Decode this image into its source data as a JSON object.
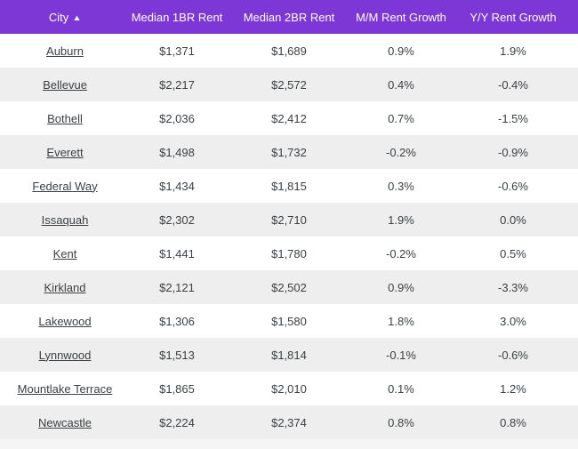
{
  "colors": {
    "header_bg": "#7d37d7",
    "header_text": "#ffffff",
    "row_white": "#ffffff",
    "row_alt": "#eeeeee",
    "cell_text": "#3c4043",
    "page_bg": "#f5f5f5"
  },
  "icons": {
    "sort_ascending": "▲"
  },
  "table": {
    "columns": [
      {
        "key": "city",
        "label": "City",
        "sorted": "ascending"
      },
      {
        "key": "median_1br",
        "label": "Median 1BR Rent",
        "sorted": "none"
      },
      {
        "key": "median_2br",
        "label": "Median 2BR Rent",
        "sorted": "none"
      },
      {
        "key": "mm_growth",
        "label": "M/M Rent Growth",
        "sorted": "none"
      },
      {
        "key": "yy_growth",
        "label": "Y/Y Rent Growth",
        "sorted": "none"
      }
    ],
    "rows": [
      {
        "city": "Auburn",
        "median_1br": "$1,371",
        "median_2br": "$1,689",
        "mm_growth": "0.9%",
        "yy_growth": "1.9%"
      },
      {
        "city": "Bellevue",
        "median_1br": "$2,217",
        "median_2br": "$2,572",
        "mm_growth": "0.4%",
        "yy_growth": "-0.4%"
      },
      {
        "city": "Bothell",
        "median_1br": "$2,036",
        "median_2br": "$2,412",
        "mm_growth": "0.7%",
        "yy_growth": "-1.5%"
      },
      {
        "city": "Everett",
        "median_1br": "$1,498",
        "median_2br": "$1,732",
        "mm_growth": "-0.2%",
        "yy_growth": "-0.9%"
      },
      {
        "city": "Federal Way",
        "median_1br": "$1,434",
        "median_2br": "$1,815",
        "mm_growth": "0.3%",
        "yy_growth": "-0.6%"
      },
      {
        "city": "Issaquah",
        "median_1br": "$2,302",
        "median_2br": "$2,710",
        "mm_growth": "1.9%",
        "yy_growth": "0.0%"
      },
      {
        "city": "Kent",
        "median_1br": "$1,441",
        "median_2br": "$1,780",
        "mm_growth": "-0.2%",
        "yy_growth": "0.5%"
      },
      {
        "city": "Kirkland",
        "median_1br": "$2,121",
        "median_2br": "$2,502",
        "mm_growth": "0.9%",
        "yy_growth": "-3.3%"
      },
      {
        "city": "Lakewood",
        "median_1br": "$1,306",
        "median_2br": "$1,580",
        "mm_growth": "1.8%",
        "yy_growth": "3.0%"
      },
      {
        "city": "Lynnwood",
        "median_1br": "$1,513",
        "median_2br": "$1,814",
        "mm_growth": "-0.1%",
        "yy_growth": "-0.6%"
      },
      {
        "city": "Mountlake Terrace",
        "median_1br": "$1,865",
        "median_2br": "$2,010",
        "mm_growth": "0.1%",
        "yy_growth": "1.2%"
      },
      {
        "city": "Newcastle",
        "median_1br": "$2,224",
        "median_2br": "$2,374",
        "mm_growth": "0.8%",
        "yy_growth": "0.8%"
      }
    ]
  }
}
